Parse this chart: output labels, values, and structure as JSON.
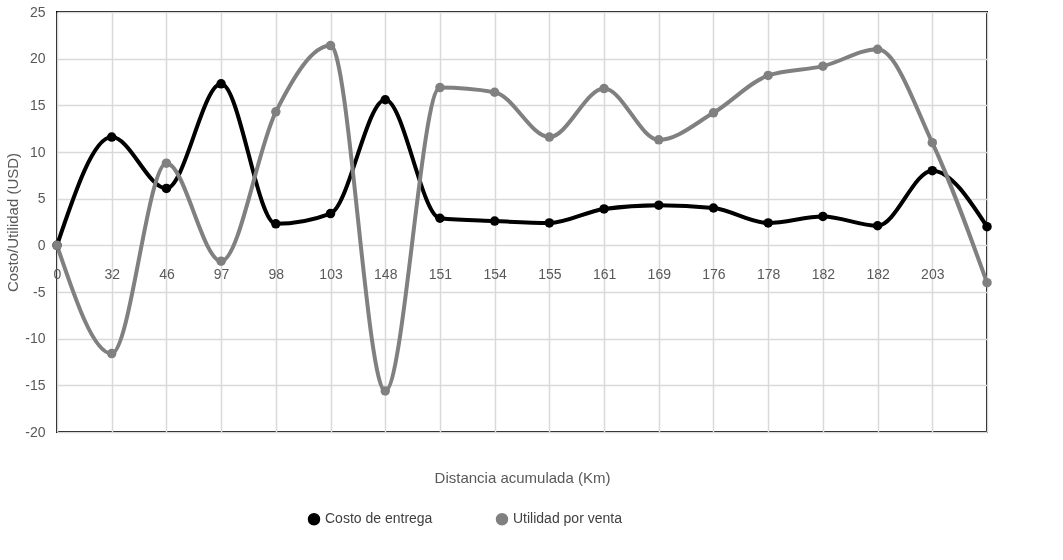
{
  "chart_data": {
    "type": "line",
    "xlabel": "Distancia acumulada (Km)",
    "ylabel": "Costo/Utilidad (USD)",
    "categories": [
      "0",
      "32",
      "46",
      "97",
      "98",
      "103",
      "148",
      "151",
      "154",
      "155",
      "161",
      "169",
      "176",
      "178",
      "182",
      "182",
      "203",
      null
    ],
    "series": [
      {
        "name": "Costo de entrega",
        "color": "#000000",
        "values": [
          0,
          11.6,
          6.1,
          17.3,
          2.3,
          3.4,
          15.6,
          2.9,
          2.6,
          2.4,
          3.9,
          4.3,
          4.0,
          2.4,
          3.1,
          2.1,
          8.0,
          2
        ]
      },
      {
        "name": "Utilidad por venta",
        "color": "#808080",
        "values": [
          0,
          -11.6,
          8.8,
          -1.7,
          14.3,
          21.4,
          -15.6,
          16.9,
          16.4,
          11.6,
          16.8,
          11.3,
          14.2,
          18.2,
          19.2,
          21.0,
          11.0,
          -4
        ]
      }
    ],
    "ylim": [
      -20,
      25
    ],
    "yticks": [
      -20,
      -15,
      -10,
      -5,
      0,
      5,
      10,
      15,
      20,
      25
    ],
    "grid": true,
    "legend": "bottom",
    "marker": "circle",
    "line_style": "solid"
  }
}
